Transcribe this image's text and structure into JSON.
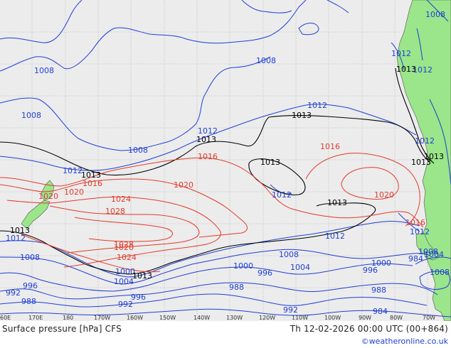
{
  "map": {
    "title": "Surface pressure [hPa] CFS",
    "valid_time": "Th 12-02-2026 00:00 UTC (00+864)",
    "credit": "©weatheronline.co.uk",
    "colors": {
      "ocean": "#ececec",
      "land": "#9be58a",
      "grid": "#9a9a9a",
      "isobar_low": "#1f3fd6",
      "isobar_high": "#e23a2a",
      "isobar_mid": "#000000"
    },
    "longitude_ticks": [
      "60E",
      "170E",
      "180",
      "170W",
      "160W",
      "150W",
      "140W",
      "130W",
      "120W",
      "110W",
      "100W",
      "90W",
      "80W",
      "70W"
    ],
    "isobar_labels": [
      {
        "text": "1008",
        "color": "blue"
      },
      {
        "text": "1008",
        "color": "blue"
      },
      {
        "text": "1012",
        "color": "blue"
      },
      {
        "text": "1008",
        "color": "blue"
      },
      {
        "text": "1008",
        "color": "blue"
      },
      {
        "text": "1012",
        "color": "blue"
      },
      {
        "text": "1012",
        "color": "blue"
      },
      {
        "text": "1008",
        "color": "blue"
      },
      {
        "text": "1012",
        "color": "blue"
      },
      {
        "text": "1012",
        "color": "blue"
      },
      {
        "text": "1012",
        "color": "blue"
      },
      {
        "text": "1012",
        "color": "blue"
      },
      {
        "text": "1012",
        "color": "blue"
      },
      {
        "text": "1012",
        "color": "blue"
      },
      {
        "text": "1012",
        "color": "blue"
      },
      {
        "text": "1008",
        "color": "blue"
      },
      {
        "text": "1008",
        "color": "blue"
      },
      {
        "text": "1008",
        "color": "blue"
      },
      {
        "text": "1004",
        "color": "blue"
      },
      {
        "text": "1004",
        "color": "blue"
      },
      {
        "text": "1000",
        "color": "blue"
      },
      {
        "text": "1000",
        "color": "blue"
      },
      {
        "text": "1000",
        "color": "blue"
      },
      {
        "text": "996",
        "color": "blue"
      },
      {
        "text": "996",
        "color": "blue"
      },
      {
        "text": "996",
        "color": "blue"
      },
      {
        "text": "996",
        "color": "blue"
      },
      {
        "text": "992",
        "color": "blue"
      },
      {
        "text": "992",
        "color": "blue"
      },
      {
        "text": "992",
        "color": "blue"
      },
      {
        "text": "988",
        "color": "blue"
      },
      {
        "text": "988",
        "color": "blue"
      },
      {
        "text": "988",
        "color": "blue"
      },
      {
        "text": "984",
        "color": "blue"
      },
      {
        "text": "984",
        "color": "blue"
      },
      {
        "text": "1004",
        "color": "blue"
      },
      {
        "text": "1008",
        "color": "blue"
      },
      {
        "text": "1016",
        "color": "red"
      },
      {
        "text": "1016",
        "color": "red"
      },
      {
        "text": "1016",
        "color": "red"
      },
      {
        "text": "1016",
        "color": "red"
      },
      {
        "text": "1020",
        "color": "red"
      },
      {
        "text": "1020",
        "color": "red"
      },
      {
        "text": "1020",
        "color": "red"
      },
      {
        "text": "1020",
        "color": "red"
      },
      {
        "text": "1020",
        "color": "red"
      },
      {
        "text": "1024",
        "color": "red"
      },
      {
        "text": "1024",
        "color": "red"
      },
      {
        "text": "1028",
        "color": "red"
      },
      {
        "text": "1028",
        "color": "red"
      },
      {
        "text": "1013",
        "color": "black"
      },
      {
        "text": "1013",
        "color": "black"
      },
      {
        "text": "1013",
        "color": "black"
      },
      {
        "text": "1013",
        "color": "black"
      },
      {
        "text": "1013",
        "color": "black"
      },
      {
        "text": "1013",
        "color": "black"
      },
      {
        "text": "1013",
        "color": "black"
      },
      {
        "text": "1013",
        "color": "black"
      },
      {
        "text": "1013",
        "color": "black"
      },
      {
        "text": "1013",
        "color": "black"
      }
    ]
  }
}
